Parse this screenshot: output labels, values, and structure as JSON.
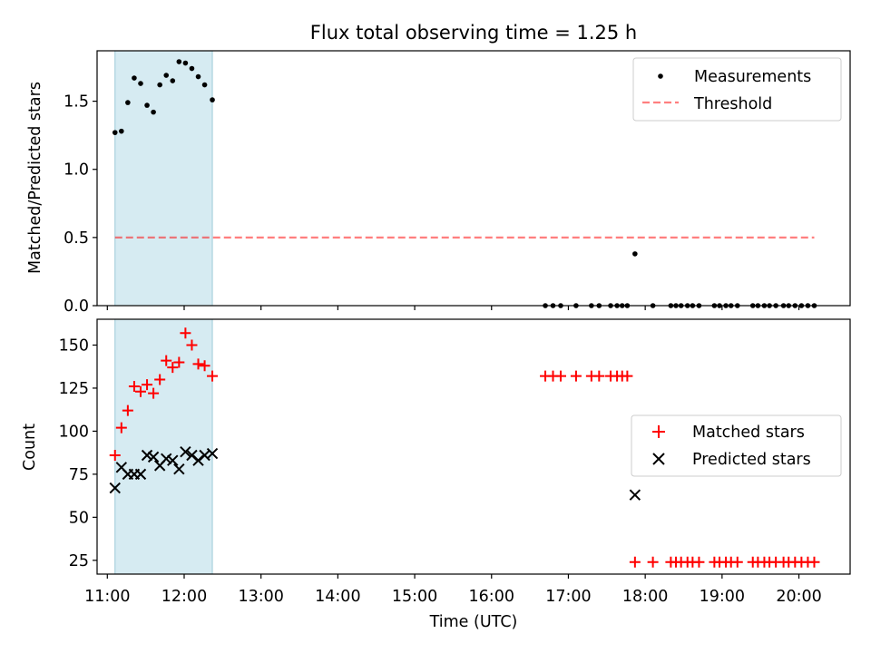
{
  "chart_data": [
    {
      "type": "scatter",
      "title": "Flux total observing time = 1.25 h",
      "ylabel": "Matched/Predicted stars",
      "xlabel": "",
      "xlim": [
        "10:52",
        "20:40"
      ],
      "ylim": [
        0,
        1.87
      ],
      "yticks": [
        0.0,
        0.5,
        1.0,
        1.5
      ],
      "ytick_labels": [
        "0.0",
        "0.5",
        "1.0",
        "1.5"
      ],
      "shaded_span": [
        "11:06",
        "12:22"
      ],
      "legend_position": "upper right",
      "legend": [
        "Measurements",
        "Threshold"
      ],
      "threshold": {
        "name": "Threshold",
        "y": 0.5,
        "x_range": [
          "11:06",
          "20:12"
        ]
      },
      "series": [
        {
          "name": "Measurements",
          "points": [
            [
              "11:06",
              1.27
            ],
            [
              "11:11",
              1.28
            ],
            [
              "11:16",
              1.49
            ],
            [
              "11:21",
              1.67
            ],
            [
              "11:26",
              1.63
            ],
            [
              "11:31",
              1.47
            ],
            [
              "11:36",
              1.42
            ],
            [
              "11:41",
              1.62
            ],
            [
              "11:46",
              1.69
            ],
            [
              "11:51",
              1.65
            ],
            [
              "11:56",
              1.79
            ],
            [
              "12:01",
              1.78
            ],
            [
              "12:06",
              1.74
            ],
            [
              "12:11",
              1.68
            ],
            [
              "12:16",
              1.62
            ],
            [
              "12:22",
              1.51
            ],
            [
              "16:42",
              0
            ],
            [
              "16:48",
              0
            ],
            [
              "16:54",
              0
            ],
            [
              "17:06",
              0
            ],
            [
              "17:18",
              0
            ],
            [
              "17:24",
              0
            ],
            [
              "17:33",
              0
            ],
            [
              "17:38",
              0
            ],
            [
              "17:42",
              0
            ],
            [
              "17:46",
              0
            ],
            [
              "17:52",
              0.38
            ],
            [
              "18:06",
              0
            ],
            [
              "18:20",
              0
            ],
            [
              "18:24",
              0
            ],
            [
              "18:28",
              0
            ],
            [
              "18:33",
              0
            ],
            [
              "18:37",
              0
            ],
            [
              "18:42",
              0
            ],
            [
              "18:54",
              0
            ],
            [
              "18:58",
              0
            ],
            [
              "19:03",
              0
            ],
            [
              "19:07",
              0
            ],
            [
              "19:12",
              0
            ],
            [
              "19:24",
              0
            ],
            [
              "19:28",
              0
            ],
            [
              "19:33",
              0
            ],
            [
              "19:37",
              0
            ],
            [
              "19:42",
              0
            ],
            [
              "19:48",
              0
            ],
            [
              "19:52",
              0
            ],
            [
              "19:57",
              0
            ],
            [
              "20:02",
              0
            ],
            [
              "20:07",
              0
            ],
            [
              "20:12",
              0
            ]
          ]
        }
      ]
    },
    {
      "type": "scatter",
      "title": "",
      "ylabel": "Count",
      "xlabel": "Time (UTC)",
      "xlim": [
        "10:52",
        "20:40"
      ],
      "ylim": [
        17,
        165
      ],
      "yticks": [
        25,
        50,
        75,
        100,
        125,
        150
      ],
      "ytick_labels": [
        "25",
        "50",
        "75",
        "100",
        "125",
        "150"
      ],
      "xtick_labels": [
        "11:00",
        "12:00",
        "13:00",
        "14:00",
        "15:00",
        "16:00",
        "17:00",
        "18:00",
        "19:00",
        "20:00"
      ],
      "shaded_span": [
        "11:06",
        "12:22"
      ],
      "legend_position": "center right",
      "legend": [
        "Matched stars",
        "Predicted stars"
      ],
      "series": [
        {
          "name": "Matched stars",
          "points": [
            [
              "11:06",
              86
            ],
            [
              "11:11",
              102
            ],
            [
              "11:16",
              112
            ],
            [
              "11:21",
              126
            ],
            [
              "11:26",
              123
            ],
            [
              "11:31",
              127
            ],
            [
              "11:36",
              122
            ],
            [
              "11:41",
              130
            ],
            [
              "11:46",
              141
            ],
            [
              "11:51",
              137
            ],
            [
              "11:56",
              140
            ],
            [
              "12:01",
              157
            ],
            [
              "12:06",
              150
            ],
            [
              "12:11",
              139
            ],
            [
              "12:16",
              138
            ],
            [
              "12:22",
              132
            ],
            [
              "16:42",
              132
            ],
            [
              "16:48",
              132
            ],
            [
              "16:54",
              132
            ],
            [
              "17:06",
              132
            ],
            [
              "17:18",
              132
            ],
            [
              "17:24",
              132
            ],
            [
              "17:33",
              132
            ],
            [
              "17:38",
              132
            ],
            [
              "17:42",
              132
            ],
            [
              "17:46",
              132
            ],
            [
              "17:52",
              24
            ],
            [
              "18:06",
              24
            ],
            [
              "18:20",
              24
            ],
            [
              "18:24",
              24
            ],
            [
              "18:28",
              24
            ],
            [
              "18:33",
              24
            ],
            [
              "18:37",
              24
            ],
            [
              "18:42",
              24
            ],
            [
              "18:54",
              24
            ],
            [
              "18:58",
              24
            ],
            [
              "19:03",
              24
            ],
            [
              "19:07",
              24
            ],
            [
              "19:12",
              24
            ],
            [
              "19:24",
              24
            ],
            [
              "19:28",
              24
            ],
            [
              "19:33",
              24
            ],
            [
              "19:37",
              24
            ],
            [
              "19:42",
              24
            ],
            [
              "19:48",
              24
            ],
            [
              "19:52",
              24
            ],
            [
              "19:57",
              24
            ],
            [
              "20:02",
              24
            ],
            [
              "20:07",
              24
            ],
            [
              "20:12",
              24
            ]
          ]
        },
        {
          "name": "Predicted stars",
          "points": [
            [
              "11:06",
              67
            ],
            [
              "11:11",
              79
            ],
            [
              "11:16",
              75
            ],
            [
              "11:21",
              75
            ],
            [
              "11:26",
              75
            ],
            [
              "11:31",
              86
            ],
            [
              "11:36",
              85
            ],
            [
              "11:41",
              80
            ],
            [
              "11:46",
              84
            ],
            [
              "11:51",
              83
            ],
            [
              "11:56",
              78
            ],
            [
              "12:01",
              88
            ],
            [
              "12:06",
              86
            ],
            [
              "12:11",
              83
            ],
            [
              "12:16",
              86
            ],
            [
              "12:22",
              87
            ],
            [
              "17:52",
              63
            ]
          ]
        }
      ]
    }
  ]
}
